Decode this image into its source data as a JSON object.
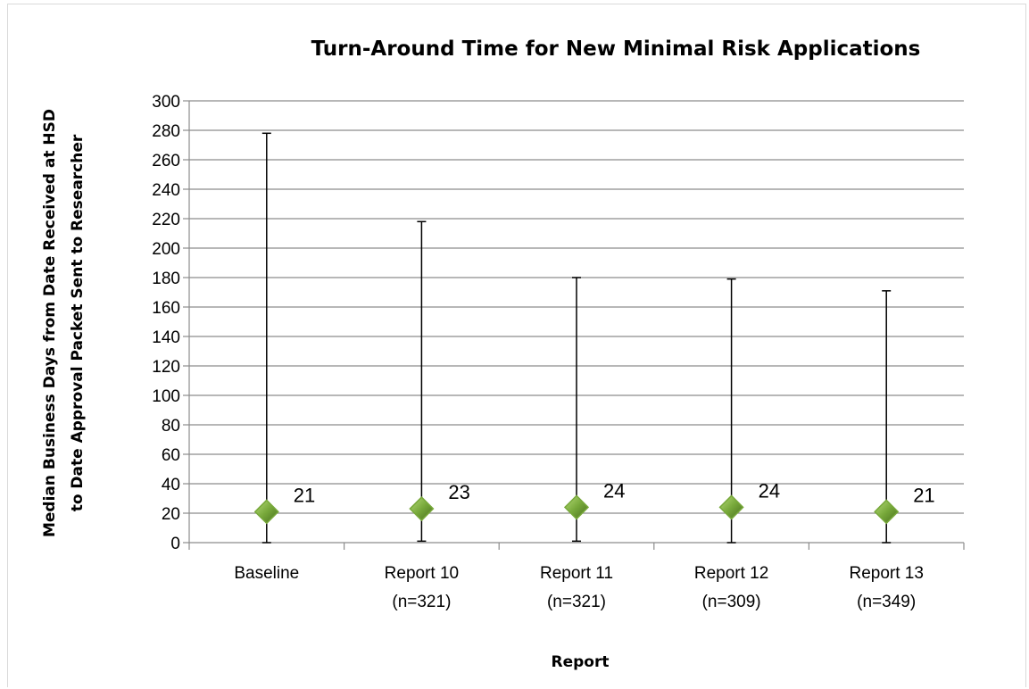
{
  "chart_data": {
    "type": "scatter",
    "title": "Turn-Around Time for New Minimal Risk Applications",
    "xlabel": "Report",
    "ylabel_lines": [
      "Median Business Days from Date Received at HSD",
      "to Date Approval Packet Sent to Researcher"
    ],
    "ylim": [
      0,
      300
    ],
    "y_ticks": [
      "0",
      "20",
      "40",
      "60",
      "80",
      "100",
      "120",
      "140",
      "160",
      "180",
      "200",
      "220",
      "240",
      "260",
      "280",
      "300"
    ],
    "grid": "horizontal",
    "categories": [
      {
        "line1": "Baseline",
        "line2": ""
      },
      {
        "line1": "Report 10",
        "line2": "(n=321)"
      },
      {
        "line1": "Report 11",
        "line2": "(n=321)"
      },
      {
        "line1": "Report 12",
        "line2": "(n=309)"
      },
      {
        "line1": "Report 13",
        "line2": "(n=349)"
      }
    ],
    "series": [
      {
        "values": [
          21,
          23,
          24,
          24,
          21
        ],
        "value_labels": [
          "21",
          "23",
          "24",
          "24",
          "21"
        ],
        "min": [
          0,
          1,
          1,
          0,
          0
        ],
        "max": [
          278,
          218,
          180,
          179,
          171
        ],
        "marker_color": "#77a83a",
        "marker_shape": "diamond"
      }
    ]
  }
}
